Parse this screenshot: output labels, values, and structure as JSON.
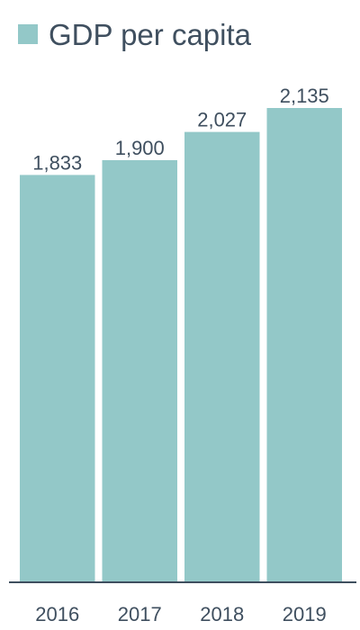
{
  "legend": {
    "label": "GDP per capita"
  },
  "colors": {
    "bar": "#93c8c8",
    "axis": "#3f4f5f",
    "text": "#3f4f5f"
  },
  "chart_data": {
    "type": "bar",
    "categories": [
      "2016",
      "2017",
      "2018",
      "2019"
    ],
    "series": [
      {
        "name": "GDP per capita",
        "values": [
          1833,
          1900,
          2027,
          2135
        ]
      }
    ],
    "value_labels": [
      "1,833",
      "1,900",
      "2,027",
      "2,135"
    ],
    "ylim": [
      0,
      2135
    ],
    "grid": false,
    "legend_position": "top-left"
  }
}
